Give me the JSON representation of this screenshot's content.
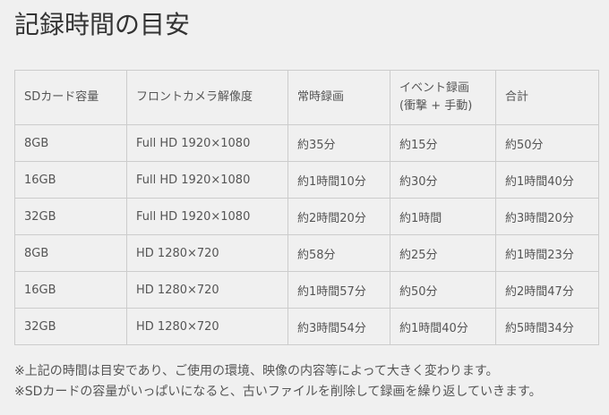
{
  "title": "記録時間の目安",
  "table": {
    "headers": [
      "SDカード容量",
      "フロントカメラ解像度",
      "常時録画",
      "イベント録画",
      "合計"
    ],
    "header_sub": "(衝撃 + 手動)",
    "rows": [
      [
        "8GB",
        "Full HD 1920×1080",
        "約35分",
        "約15分",
        "約50分"
      ],
      [
        "16GB",
        "Full HD 1920×1080",
        "約1時間10分",
        "約30分",
        "約1時間40分"
      ],
      [
        "32GB",
        "Full HD 1920×1080",
        "約2時間20分",
        "約1時間",
        "約3時間20分"
      ],
      [
        "8GB",
        "HD 1280×720",
        "約58分",
        "約25分",
        "約1時間23分"
      ],
      [
        "16GB",
        "HD 1280×720",
        "約1時間57分",
        "約50分",
        "約2時間47分"
      ],
      [
        "32GB",
        "HD 1280×720",
        "約3時間54分",
        "約1時間40分",
        "約5時間34分"
      ]
    ]
  },
  "notes": [
    "※上記の時間は目安であり、ご使用の環境、映像の内容等によって大きく変わります。",
    "※SDカードの容量がいっぱいになると、古いファイルを削除して録画を繰り返していきます。"
  ]
}
